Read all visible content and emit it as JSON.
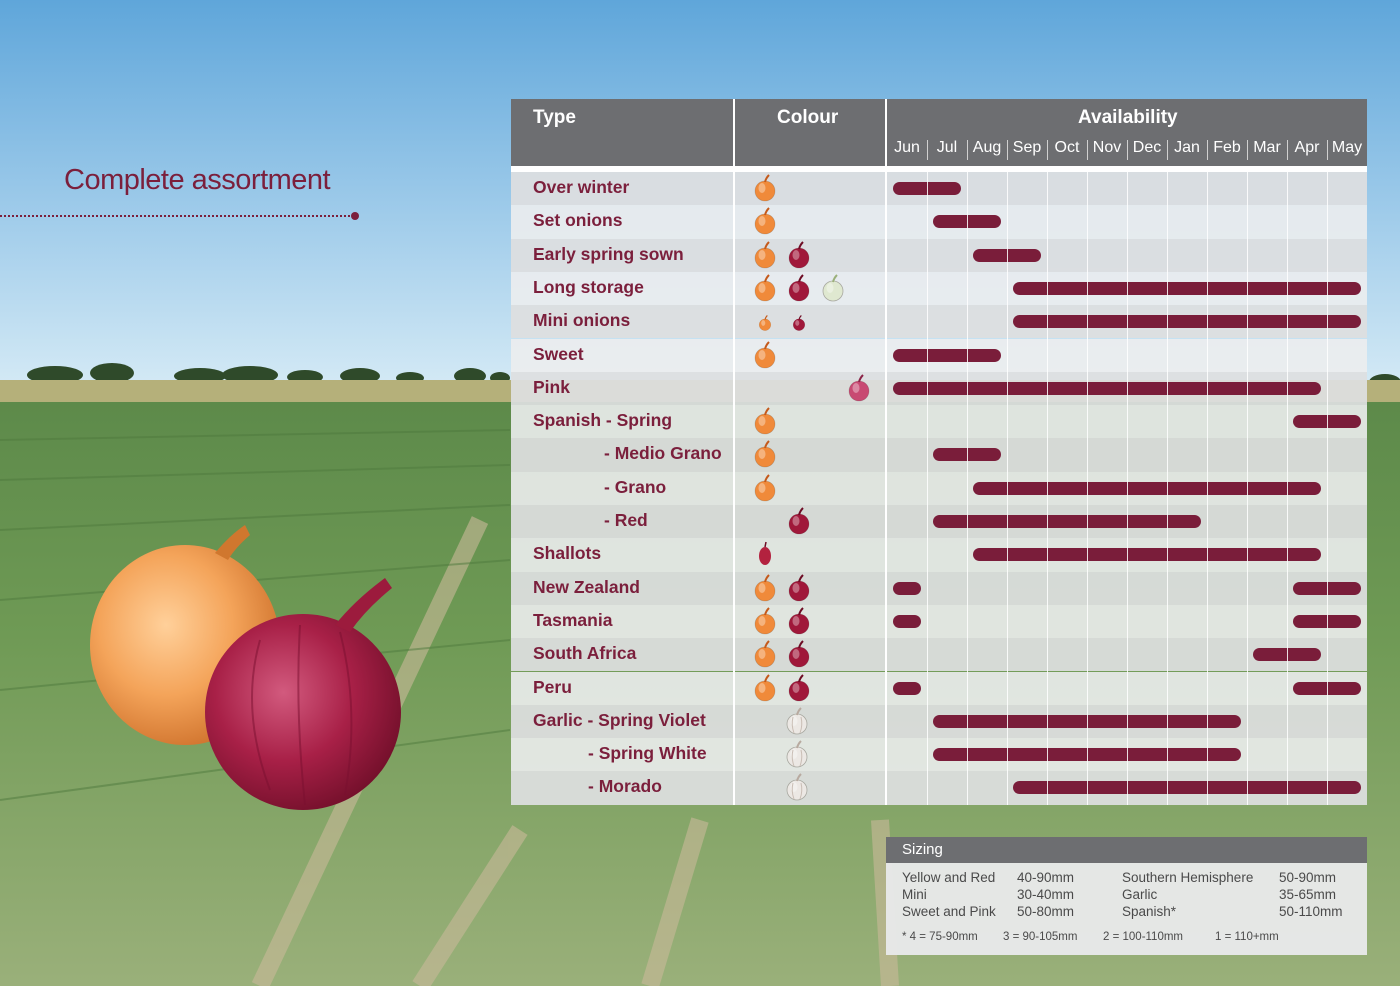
{
  "heading": "Complete assortment",
  "colors": {
    "accent": "#7b1f3c",
    "bar": "#7a1d3a",
    "header_bg": "#6d6e71",
    "yellow_onion": "#f08a3a",
    "red_onion": "#a0183a",
    "white_onion": "#dfe8d0",
    "pink_onion": "#c84a72",
    "garlic": "#ece8e4"
  },
  "table": {
    "col_type": "Type",
    "col_colour": "Colour",
    "col_availability": "Availability"
  },
  "chart_data": {
    "type": "gantt",
    "months": [
      "Jun",
      "Jul",
      "Aug",
      "Sep",
      "Oct",
      "Nov",
      "Dec",
      "Jan",
      "Feb",
      "Mar",
      "Apr",
      "May"
    ],
    "rows": [
      {
        "label": "Over winter",
        "indent": 0,
        "colours": [
          "yellow"
        ],
        "ranges": [
          [
            "Jun",
            "Jul"
          ]
        ]
      },
      {
        "label": "Set onions",
        "indent": 0,
        "colours": [
          "yellow"
        ],
        "ranges": [
          [
            "Jul",
            "Aug"
          ]
        ]
      },
      {
        "label": "Early spring sown",
        "indent": 0,
        "colours": [
          "yellow",
          "red"
        ],
        "ranges": [
          [
            "Aug",
            "Sep"
          ]
        ]
      },
      {
        "label": "Long storage",
        "indent": 0,
        "colours": [
          "yellow",
          "red",
          "white"
        ],
        "ranges": [
          [
            "Sep",
            "May"
          ]
        ]
      },
      {
        "label": "Mini onions",
        "indent": 0,
        "colours": [
          "yellow-small",
          "red-small"
        ],
        "ranges": [
          [
            "Sep",
            "May"
          ]
        ]
      },
      {
        "label": "Sweet",
        "indent": 0,
        "colours": [
          "yellow"
        ],
        "ranges": [
          [
            "Jun",
            "Aug"
          ]
        ]
      },
      {
        "label": "Pink",
        "indent": 0,
        "colours": [
          "pink"
        ],
        "ranges": [
          [
            "Jun",
            "Apr"
          ]
        ]
      },
      {
        "label": "Spanish - Spring",
        "indent": 0,
        "colours": [
          "yellow"
        ],
        "ranges": [
          [
            "Apr",
            "May"
          ]
        ]
      },
      {
        "label": "- Medio Grano",
        "indent": 1,
        "colours": [
          "yellow"
        ],
        "ranges": [
          [
            "Jul",
            "Aug"
          ]
        ]
      },
      {
        "label": "- Grano",
        "indent": 1,
        "colours": [
          "yellow"
        ],
        "ranges": [
          [
            "Aug",
            "Apr"
          ]
        ]
      },
      {
        "label": "- Red",
        "indent": 1,
        "colours": [
          "red-only"
        ],
        "ranges": [
          [
            "Jul",
            "Jan"
          ]
        ]
      },
      {
        "label": "Shallots",
        "indent": 0,
        "colours": [
          "shallot"
        ],
        "ranges": [
          [
            "Aug",
            "Apr"
          ]
        ]
      },
      {
        "label": "New Zealand",
        "indent": 0,
        "colours": [
          "yellow",
          "red"
        ],
        "ranges": [
          [
            "Jun",
            "Jun"
          ],
          [
            "Apr",
            "May"
          ]
        ]
      },
      {
        "label": "Tasmania",
        "indent": 0,
        "colours": [
          "yellow",
          "red"
        ],
        "ranges": [
          [
            "Jun",
            "Jun"
          ],
          [
            "Apr",
            "May"
          ]
        ]
      },
      {
        "label": "South Africa",
        "indent": 0,
        "colours": [
          "yellow",
          "red"
        ],
        "ranges": [
          [
            "Mar",
            "Apr"
          ]
        ]
      },
      {
        "label": "Peru",
        "indent": 0,
        "colours": [
          "yellow",
          "red"
        ],
        "ranges": [
          [
            "Jun",
            "Jun"
          ],
          [
            "Apr",
            "May"
          ]
        ]
      },
      {
        "label": "Garlic  - Spring Violet",
        "indent": 0,
        "colours": [
          "garlic"
        ],
        "ranges": [
          [
            "Jul",
            "Feb"
          ]
        ]
      },
      {
        "label": "- Spring White",
        "indent": 2,
        "colours": [
          "garlic"
        ],
        "ranges": [
          [
            "Jul",
            "Feb"
          ]
        ]
      },
      {
        "label": "- Morado",
        "indent": 2,
        "colours": [
          "garlic"
        ],
        "ranges": [
          [
            "Sep",
            "May"
          ]
        ]
      }
    ]
  },
  "sizing": {
    "title": "Sizing",
    "left": [
      {
        "name": "Yellow and Red",
        "size": "40-90mm"
      },
      {
        "name": "Mini",
        "size": "30-40mm"
      },
      {
        "name": "Sweet and Pink",
        "size": "50-80mm"
      }
    ],
    "right": [
      {
        "name": "Southern Hemisphere",
        "size": "50-90mm"
      },
      {
        "name": "Garlic",
        "size": "35-65mm"
      },
      {
        "name": "Spanish*",
        "size": "50-110mm"
      }
    ],
    "footnotes": [
      "* 4 = 75-90mm",
      "3 = 90-105mm",
      "2 = 100-110mm",
      "1 = 110+mm"
    ]
  }
}
